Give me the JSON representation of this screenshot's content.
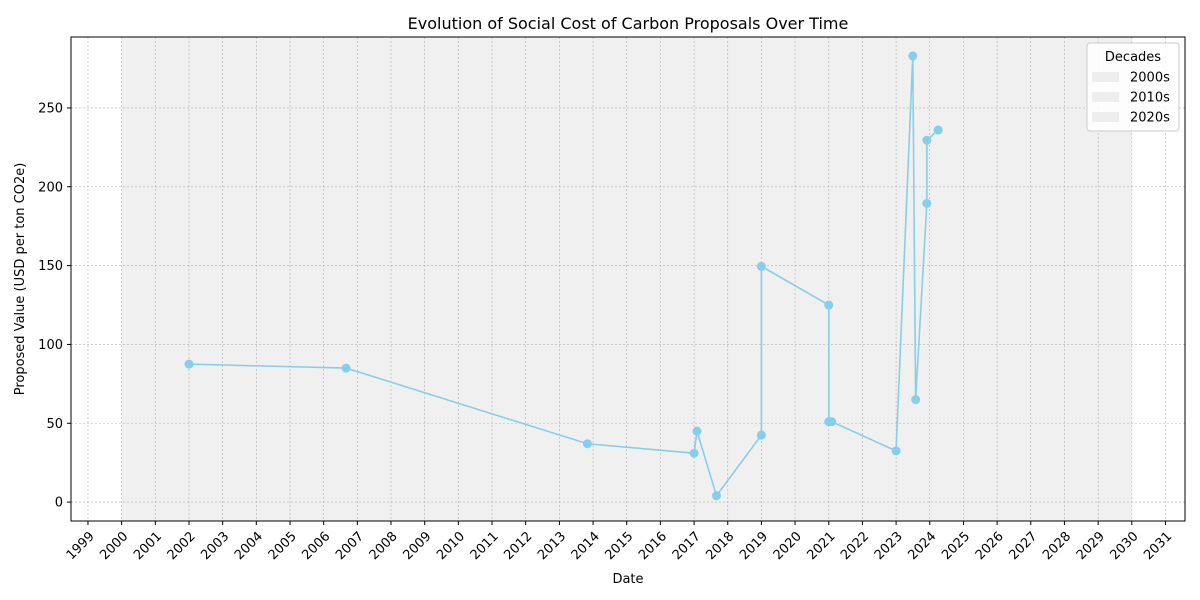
{
  "chart_data": {
    "type": "line",
    "title": "Evolution of Social Cost of Carbon Proposals Over Time",
    "xlabel": "Date",
    "ylabel": "Proposed Value (USD per ton CO2e)",
    "x_ticks": [
      "1999",
      "2000",
      "2001",
      "2002",
      "2003",
      "2004",
      "2005",
      "2006",
      "2007",
      "2008",
      "2009",
      "2010",
      "2011",
      "2012",
      "2013",
      "2014",
      "2015",
      "2016",
      "2017",
      "2018",
      "2019",
      "2020",
      "2021",
      "2022",
      "2023",
      "2024",
      "2025",
      "2026",
      "2027",
      "2028",
      "2029",
      "2030",
      "2031"
    ],
    "y_ticks": [
      0,
      50,
      100,
      150,
      200,
      250
    ],
    "xlim": [
      "1998-07-01",
      "2031-08-01"
    ],
    "ylim": [
      -12,
      295
    ],
    "grid": true,
    "shaded_range": [
      "2000-01-01",
      "2030-01-01"
    ],
    "legend": {
      "title": "Decades",
      "position": "top-right",
      "entries": [
        "2000s",
        "2010s",
        "2020s"
      ]
    },
    "colors": {
      "series": "#87ceeb",
      "shade": "#f0f0f0",
      "legend_patch": "#eeeeee",
      "grid": "#b0b0b0"
    },
    "series": [
      {
        "x": [
          "2002-01-01",
          "2006-09-01",
          "2013-11-01",
          "2017-01-01",
          "2017-02-01",
          "2017-09-01",
          "2019-01-01",
          "2019-01-01",
          "2021-01-01",
          "2021-01-01",
          "2021-02-01",
          "2023-01-01",
          "2023-07-01",
          "2023-08-01",
          "2023-12-01",
          "2023-12-01",
          "2024-04-01"
        ],
        "y": [
          87.5,
          85,
          37,
          31,
          45,
          4,
          42.5,
          149.5,
          125,
          51,
          51,
          32.5,
          283,
          65,
          189.5,
          229.5,
          236
        ]
      }
    ]
  }
}
